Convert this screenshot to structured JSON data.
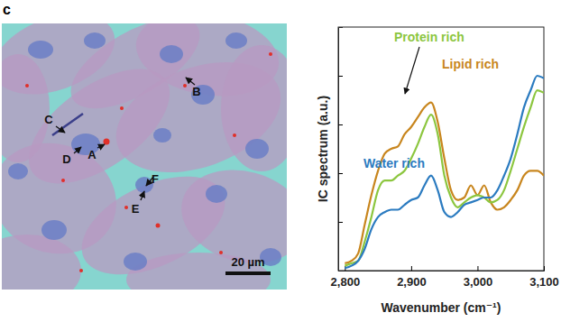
{
  "panel_label": "c",
  "image": {
    "labels": [
      "A",
      "B",
      "C",
      "D",
      "E",
      "F"
    ],
    "scale_bar": "20 µm"
  },
  "chart_data": {
    "type": "line",
    "x_label": "Wavenumber (cm⁻¹)",
    "y_label": "IC spectrum (a.u.)",
    "x": [
      2800,
      2810,
      2820,
      2830,
      2840,
      2850,
      2860,
      2870,
      2880,
      2890,
      2900,
      2910,
      2920,
      2930,
      2940,
      2950,
      2960,
      2970,
      2980,
      2990,
      3000,
      3010,
      3020,
      3030,
      3040,
      3050,
      3060,
      3070,
      3080,
      3090,
      3100
    ],
    "series": [
      {
        "name": "Lipid rich",
        "color": "#c8861e",
        "values": [
          0.03,
          0.04,
          0.07,
          0.19,
          0.31,
          0.41,
          0.48,
          0.5,
          0.51,
          0.56,
          0.59,
          0.63,
          0.67,
          0.69,
          0.61,
          0.46,
          0.33,
          0.29,
          0.3,
          0.35,
          0.31,
          0.35,
          0.28,
          0.25,
          0.26,
          0.29,
          0.33,
          0.39,
          0.41,
          0.41,
          0.39
        ]
      },
      {
        "name": "Protein rich",
        "color": "#8cc63f",
        "values": [
          0.02,
          0.03,
          0.04,
          0.12,
          0.22,
          0.33,
          0.37,
          0.37,
          0.39,
          0.41,
          0.46,
          0.52,
          0.59,
          0.64,
          0.56,
          0.39,
          0.3,
          0.26,
          0.28,
          0.3,
          0.31,
          0.3,
          0.28,
          0.29,
          0.33,
          0.41,
          0.5,
          0.59,
          0.67,
          0.74,
          0.73
        ]
      },
      {
        "name": "Water rich",
        "color": "#2b7bc0",
        "values": [
          0.01,
          0.02,
          0.04,
          0.09,
          0.17,
          0.22,
          0.24,
          0.25,
          0.25,
          0.27,
          0.29,
          0.3,
          0.35,
          0.39,
          0.33,
          0.24,
          0.22,
          0.24,
          0.27,
          0.28,
          0.29,
          0.3,
          0.3,
          0.33,
          0.39,
          0.46,
          0.56,
          0.67,
          0.74,
          0.8,
          0.79
        ]
      }
    ],
    "xlim": [
      2790,
      3100
    ],
    "xticks": [
      {
        "value": 2800,
        "label": "2,800"
      },
      {
        "value": 2900,
        "label": "2,900"
      },
      {
        "value": 3000,
        "label": "3,000"
      },
      {
        "value": 3100,
        "label": "3,100"
      }
    ],
    "ylim": [
      0,
      1
    ],
    "yticks": [
      0.2,
      0.4,
      0.6,
      0.8
    ],
    "tick_labels": "x",
    "grid": false
  }
}
